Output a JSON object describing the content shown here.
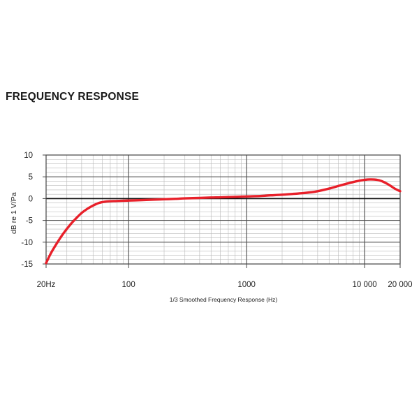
{
  "chart_data": {
    "type": "line",
    "title": "FREQUENCY RESPONSE",
    "xlabel": "1/3 Smoothed Frequency Response (Hz)",
    "ylabel": "dB re 1 V/Pa",
    "x_scale": "log",
    "xlim": [
      20,
      20000
    ],
    "ylim": [
      -15,
      10
    ],
    "x_ticks": [
      {
        "value": 20,
        "label": "20Hz"
      },
      {
        "value": 100,
        "label": "100"
      },
      {
        "value": 1000,
        "label": "1000"
      },
      {
        "value": 10000,
        "label": "10 000"
      },
      {
        "value": 20000,
        "label": "20 000"
      }
    ],
    "y_ticks": [
      {
        "value": 10,
        "label": "10"
      },
      {
        "value": 5,
        "label": "5"
      },
      {
        "value": 0,
        "label": "0"
      },
      {
        "value": -5,
        "label": "-5"
      },
      {
        "value": -10,
        "label": "-10"
      },
      {
        "value": -15,
        "label": "-15"
      }
    ],
    "grid": true,
    "series": [
      {
        "color": "#e8202a",
        "x": [
          20,
          22,
          25,
          28,
          32,
          36,
          40,
          45,
          50,
          56,
          63,
          70,
          80,
          100,
          130,
          160,
          200,
          250,
          300,
          400,
          500,
          600,
          800,
          1000,
          1300,
          1600,
          2000,
          2500,
          3000,
          3500,
          4000,
          5000,
          6000,
          7000,
          8000,
          9000,
          10000,
          11000,
          12500,
          14000,
          16000,
          18000,
          20000
        ],
        "y": [
          -14.8,
          -12.5,
          -10.0,
          -8.0,
          -6.0,
          -4.5,
          -3.3,
          -2.3,
          -1.6,
          -1.0,
          -0.7,
          -0.6,
          -0.55,
          -0.45,
          -0.35,
          -0.25,
          -0.15,
          -0.05,
          0.05,
          0.15,
          0.25,
          0.3,
          0.4,
          0.5,
          0.6,
          0.75,
          0.9,
          1.1,
          1.25,
          1.45,
          1.7,
          2.3,
          2.9,
          3.4,
          3.8,
          4.1,
          4.3,
          4.4,
          4.35,
          4.0,
          3.2,
          2.3,
          1.7
        ]
      }
    ]
  }
}
